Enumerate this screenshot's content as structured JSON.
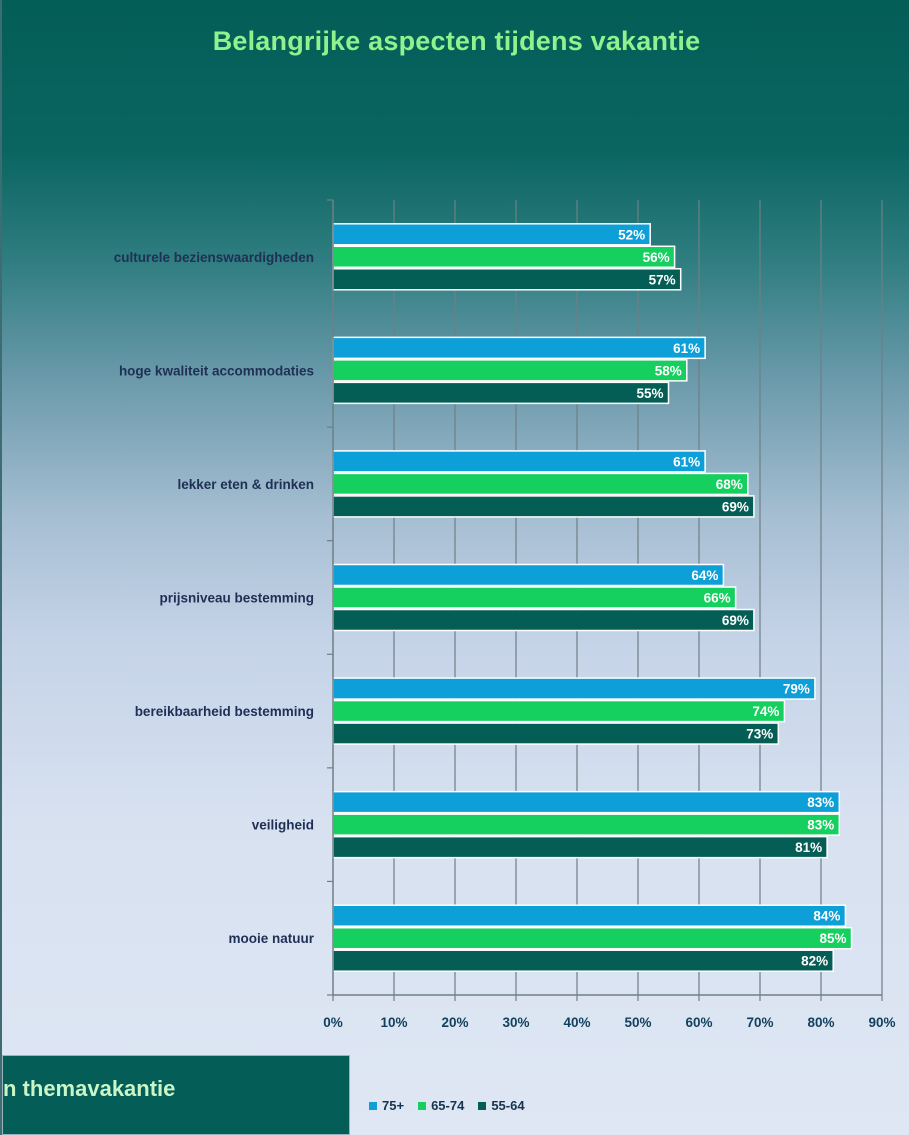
{
  "chart_data": {
    "type": "bar",
    "orientation": "horizontal",
    "title": "Belangrijke aspecten tijdens vakantie",
    "categories": [
      "culturele bezienswaardigheden",
      "hoge kwaliteit accommodaties",
      "lekker eten & drinken",
      "prijsniveau bestemming",
      "bereikbaarheid bestemming",
      "veiligheid",
      "mooie natuur"
    ],
    "series": [
      {
        "name": "75+",
        "color": "#0d9fd8",
        "values": [
          52,
          61,
          61,
          64,
          79,
          83,
          84
        ]
      },
      {
        "name": "65-74",
        "color": "#15cf5e",
        "values": [
          56,
          58,
          68,
          66,
          74,
          83,
          85
        ]
      },
      {
        "name": "55-64",
        "color": "#055e55",
        "values": [
          57,
          55,
          69,
          69,
          73,
          81,
          82
        ]
      }
    ],
    "bar_labels": [
      [
        "52%",
        "61%",
        "61%",
        "64%",
        "79%",
        "83%",
        "84%"
      ],
      [
        "56%",
        "58%",
        "68%",
        "66%",
        "74%",
        "83%",
        "85%"
      ],
      [
        "57%",
        "55%",
        "69%",
        "69%",
        "73%",
        "81%",
        "82%"
      ]
    ],
    "xlim": [
      0,
      90
    ],
    "xticks": [
      0,
      10,
      20,
      30,
      40,
      50,
      60,
      70,
      80,
      90
    ],
    "xtick_labels": [
      "0%",
      "10%",
      "20%",
      "30%",
      "40%",
      "50%",
      "60%",
      "70%",
      "80%",
      "90%"
    ],
    "grid": "vertical",
    "legend": "bottom"
  },
  "footer": {
    "text": "n themavakantie"
  }
}
